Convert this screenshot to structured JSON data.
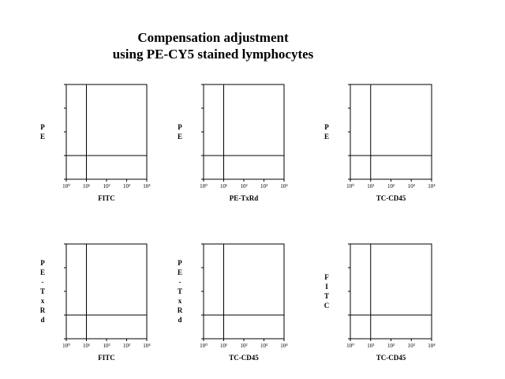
{
  "title_line1": "Compensation adjustment",
  "title_line2": "using PE-CY5 stained lymphocytes",
  "chart_data": [
    {
      "type": "scatter",
      "xlabel": "FITC",
      "ylabel": "PE",
      "xscale": "log",
      "x_ticks": [
        "10⁰",
        "10¹",
        "10²",
        "10³",
        "10⁴"
      ],
      "quadrant_x": 10,
      "quadrant_y": 10,
      "y_gridlines": true
    },
    {
      "type": "scatter",
      "xlabel": "PE-TxRd",
      "ylabel": "PE",
      "xscale": "log",
      "x_ticks": [
        "10⁰",
        "10¹",
        "10²",
        "10³",
        "10⁴"
      ],
      "quadrant_x": 10,
      "quadrant_y": 10,
      "y_gridlines": true
    },
    {
      "type": "scatter",
      "xlabel": "TC-CD45",
      "ylabel": "PE",
      "xscale": "log",
      "x_ticks": [
        "10⁰",
        "10¹",
        "10²",
        "10³",
        "10⁴"
      ],
      "quadrant_x": 10,
      "quadrant_y": 10,
      "y_gridlines": true
    },
    {
      "type": "scatter",
      "xlabel": "FITC",
      "ylabel": "PE-TxRd",
      "xscale": "log",
      "x_ticks": [
        "10⁰",
        "10¹",
        "10²",
        "10³",
        "10⁴"
      ],
      "quadrant_x": 10,
      "quadrant_y": 10,
      "y_gridlines": true
    },
    {
      "type": "scatter",
      "xlabel": "TC-CD45",
      "ylabel": "PE-TxRd",
      "xscale": "log",
      "x_ticks": [
        "10⁰",
        "10¹",
        "10²",
        "10³",
        "10⁴"
      ],
      "quadrant_x": 10,
      "quadrant_y": 10,
      "y_gridlines": true
    },
    {
      "type": "scatter",
      "xlabel": "TC-CD45",
      "ylabel": "FITC",
      "xscale": "log",
      "x_ticks": [
        "10⁰",
        "10¹",
        "10²",
        "10³",
        "10⁴"
      ],
      "quadrant_x": 10,
      "quadrant_y": 10,
      "y_gridlines": true
    }
  ]
}
